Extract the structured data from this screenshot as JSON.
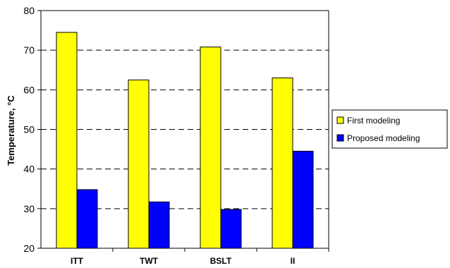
{
  "chart_data": {
    "type": "bar",
    "title": "",
    "xlabel": "",
    "ylabel": "Temperature, °C",
    "ylim": [
      20,
      80
    ],
    "yticks": [
      20,
      30,
      40,
      50,
      60,
      70,
      80
    ],
    "grid": "horizontal-dashed",
    "legend_position": "right",
    "categories": [
      "ITT",
      "TWT",
      "BSLT",
      "II"
    ],
    "series": [
      {
        "name": "First modeling",
        "color": "#ffff00",
        "values": [
          74.5,
          62.5,
          70.8,
          63.0
        ]
      },
      {
        "name": "Proposed modeling",
        "color": "#0000ff",
        "values": [
          34.8,
          31.7,
          29.8,
          44.5
        ]
      }
    ]
  }
}
